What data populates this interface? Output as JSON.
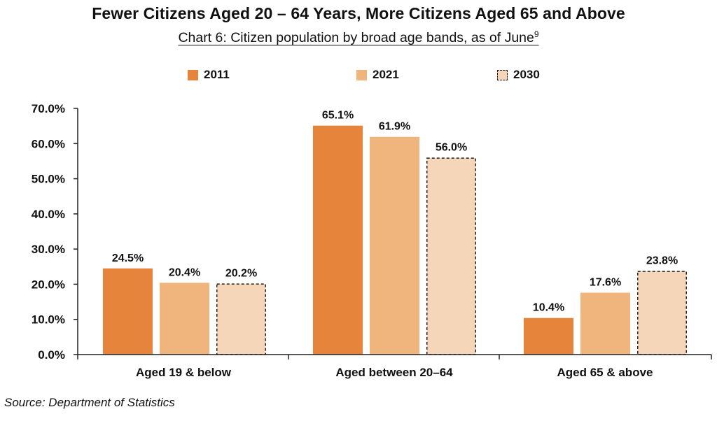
{
  "title": "Fewer Citizens Aged 20 – 64 Years, More Citizens Aged 65 and Above",
  "subtitle": "Chart 6: Citizen population by broad age bands, as of June",
  "subtitle_footnote": "9",
  "source": "Source: Department of Statistics",
  "colors": {
    "s2011": "#E5843A",
    "s2021": "#F0B47D",
    "s2030": "#F6D6B9",
    "axis": "#222222"
  },
  "chart_data": {
    "type": "bar",
    "title": "Fewer Citizens Aged 20 – 64 Years, More Citizens Aged 65 and Above",
    "subtitle": "Chart 6: Citizen population by broad age bands, as of June",
    "categories": [
      "Aged 19 & below",
      "Aged between 20–64",
      "Aged 65 & above"
    ],
    "series": [
      {
        "name": "2011",
        "values": [
          24.5,
          65.1,
          10.4
        ],
        "labels": [
          "24.5%",
          "65.1%",
          "10.4%"
        ],
        "style": "solid"
      },
      {
        "name": "2021",
        "values": [
          20.4,
          61.9,
          17.6
        ],
        "labels": [
          "20.4%",
          "61.9%",
          "17.6%"
        ],
        "style": "solid"
      },
      {
        "name": "2030",
        "values": [
          20.2,
          56.0,
          23.8
        ],
        "labels": [
          "20.2%",
          "56.0%",
          "23.8%"
        ],
        "style": "dashed"
      }
    ],
    "yticks": [
      "0.0%",
      "10.0%",
      "20.0%",
      "30.0%",
      "40.0%",
      "50.0%",
      "60.0%",
      "70.0%"
    ],
    "ylim": [
      0,
      70
    ],
    "xlabel": "",
    "ylabel": "",
    "grid": false,
    "legend": "top-center"
  }
}
